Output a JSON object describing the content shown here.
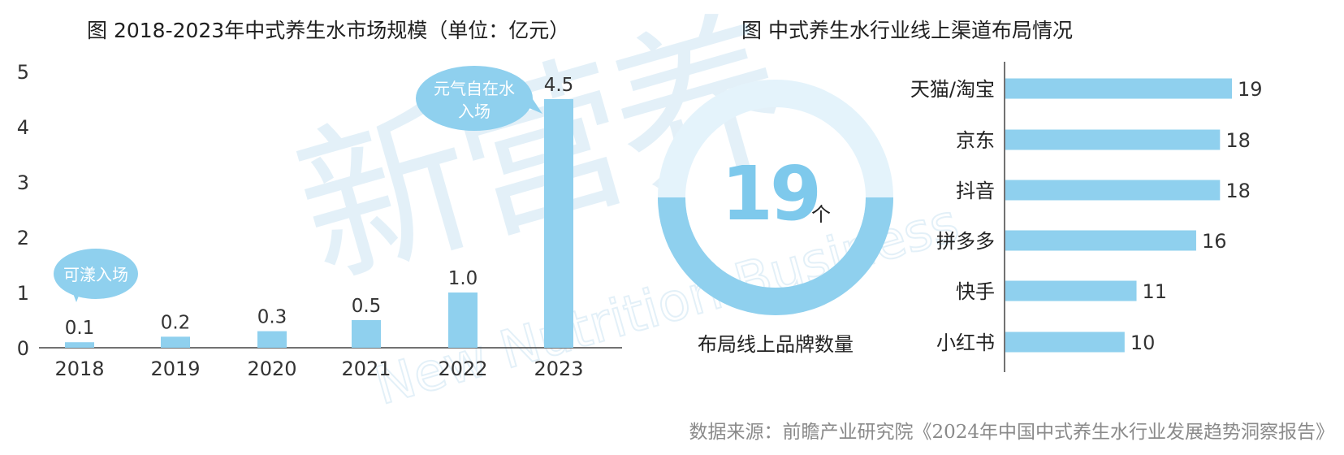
{
  "left_title": "图 2018-2023年中式养生水市场规模（单位：亿元）",
  "right_title": "图 中式养生水行业线上渠道布局情况",
  "source": "数据来源：前瞻产业研究院《2024年中国中式养生水行业发展趋势洞察报告》",
  "watermark": {
    "cn": "新营养",
    "en": "New Nutrition Business"
  },
  "callouts": [
    {
      "text": [
        "可漾入场"
      ],
      "year": "2018"
    },
    {
      "text": [
        "元气自在水",
        "入场"
      ],
      "year": "2023"
    }
  ],
  "ring": {
    "value": "19",
    "unit": "个",
    "label": "布局线上品牌数量"
  },
  "colors": {
    "bar": "#8fd0ee",
    "callout": "#8fd0ee",
    "ring": "#8fd0ee",
    "ring_big": "#7ec9ec"
  },
  "chart_data": [
    {
      "type": "bar",
      "title": "图 2018-2023年中式养生水市场规模（单位：亿元）",
      "categories": [
        "2018",
        "2019",
        "2020",
        "2021",
        "2022",
        "2023"
      ],
      "values": [
        0.1,
        0.2,
        0.3,
        0.5,
        1.0,
        4.5
      ],
      "value_labels": [
        "0.1",
        "0.2",
        "0.3",
        "0.5",
        "1.0",
        "4.5"
      ],
      "ylim": [
        0,
        5
      ],
      "yticks": [
        "0",
        "1",
        "2",
        "3",
        "4",
        "5"
      ],
      "grid": false
    },
    {
      "type": "bar",
      "orientation": "horizontal",
      "title": "图 中式养生水行业线上渠道布局情况",
      "categories": [
        "天猫/淘宝",
        "京东",
        "抖音",
        "拼多多",
        "快手",
        "小红书"
      ],
      "values": [
        19,
        18,
        18,
        16,
        11,
        10
      ],
      "xlim": [
        0,
        19
      ],
      "grid": false
    }
  ]
}
